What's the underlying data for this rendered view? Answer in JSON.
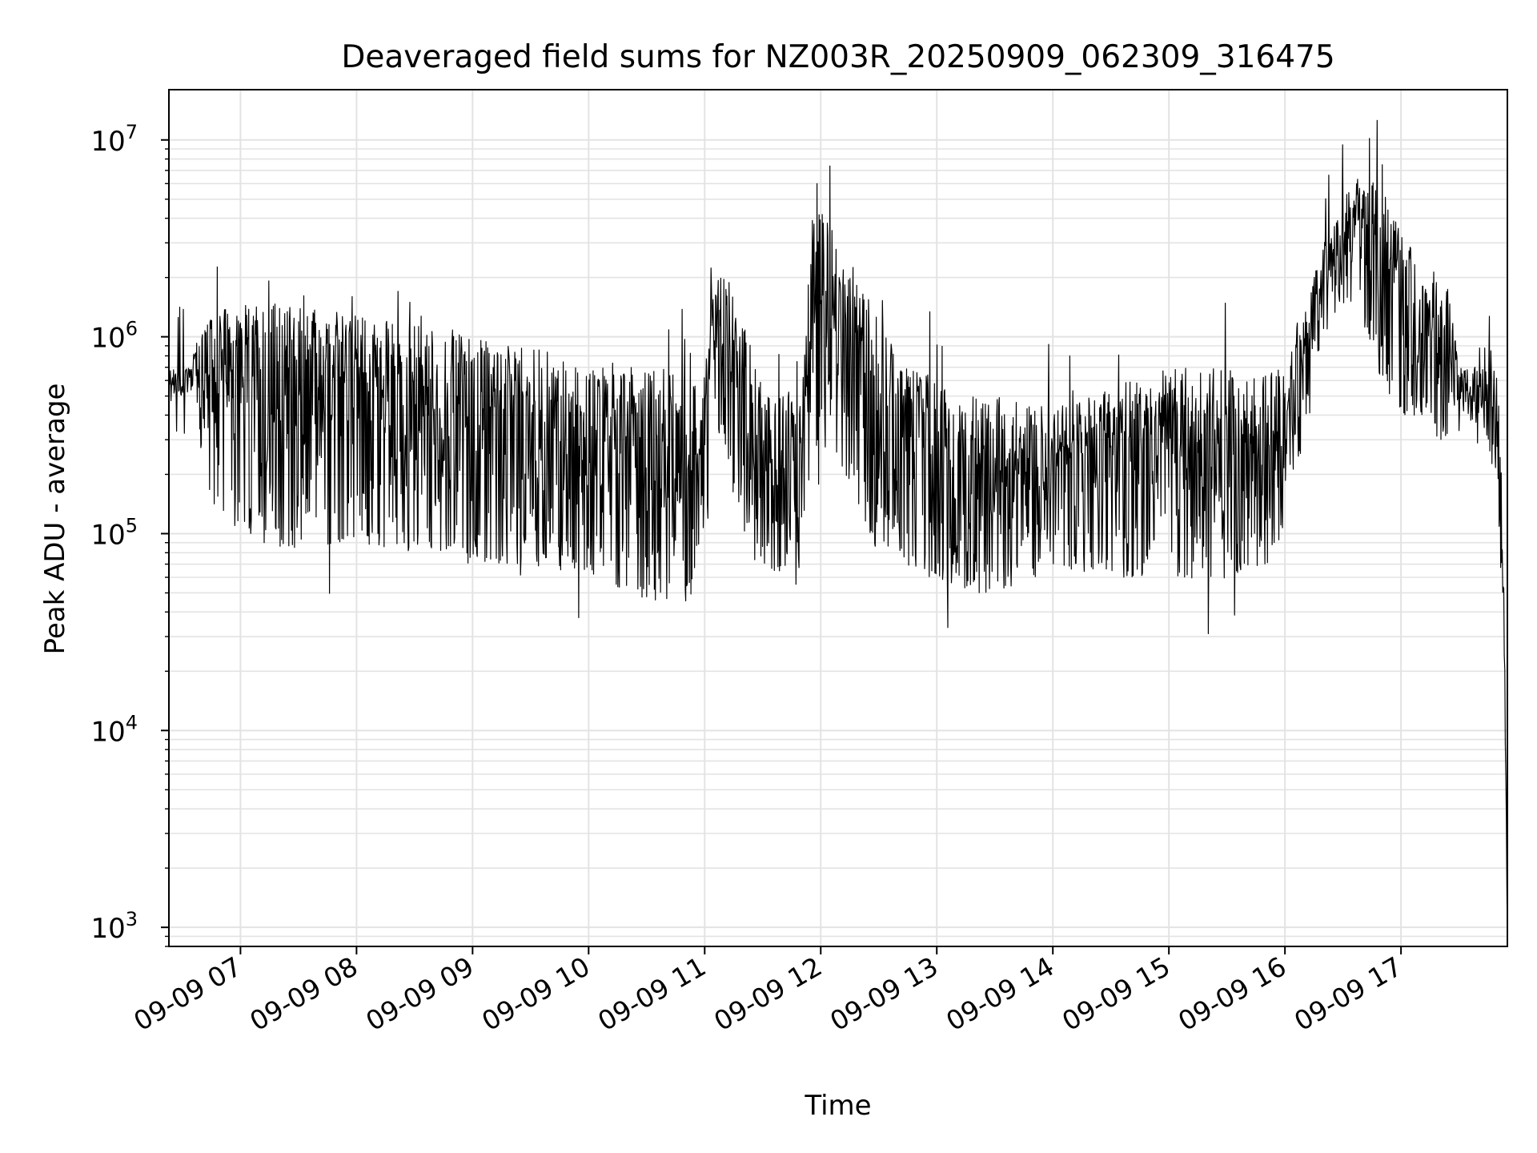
{
  "chart_data": {
    "type": "line",
    "title": "Deaveraged field sums for NZ003R_20250909_062309_316475",
    "xlabel": "Time",
    "ylabel": "Peak ADU - average",
    "yscale": "log",
    "xlim": [
      "2025-09-09 06:23",
      "2025-09-09 17:55"
    ],
    "ylim": [
      800,
      18000000
    ],
    "grid": true,
    "x_ticks": [
      {
        "value": "2025-09-09 07:00",
        "label": "09-09 07"
      },
      {
        "value": "2025-09-09 08:00",
        "label": "09-09 08"
      },
      {
        "value": "2025-09-09 09:00",
        "label": "09-09 09"
      },
      {
        "value": "2025-09-09 10:00",
        "label": "09-09 10"
      },
      {
        "value": "2025-09-09 11:00",
        "label": "09-09 11"
      },
      {
        "value": "2025-09-09 12:00",
        "label": "09-09 12"
      },
      {
        "value": "2025-09-09 13:00",
        "label": "09-09 13"
      },
      {
        "value": "2025-09-09 14:00",
        "label": "09-09 14"
      },
      {
        "value": "2025-09-09 15:00",
        "label": "09-09 15"
      },
      {
        "value": "2025-09-09 16:00",
        "label": "09-09 16"
      },
      {
        "value": "2025-09-09 17:00",
        "label": "09-09 17"
      }
    ],
    "y_ticks": [
      {
        "value": 1000,
        "base": "10",
        "exp": "3"
      },
      {
        "value": 10000,
        "base": "10",
        "exp": "4"
      },
      {
        "value": 100000,
        "base": "10",
        "exp": "5"
      },
      {
        "value": 1000000,
        "base": "10",
        "exp": "6"
      },
      {
        "value": 10000000,
        "base": "10",
        "exp": "7"
      }
    ],
    "series": [
      {
        "color": "#000000",
        "note_envelope": "upper/lower envelope of the dense noisy trace, time in HH:MM",
        "x": [
          "06:23",
          "06:30",
          "06:37",
          "06:40",
          "06:45",
          "06:50",
          "07:00",
          "07:10",
          "07:20",
          "07:30",
          "07:40",
          "07:50",
          "08:00",
          "08:10",
          "08:20",
          "08:30",
          "08:40",
          "08:50",
          "09:00",
          "09:10",
          "09:20",
          "09:30",
          "09:40",
          "09:50",
          "10:00",
          "10:10",
          "10:20",
          "10:30",
          "10:40",
          "10:50",
          "11:00",
          "11:05",
          "11:10",
          "11:20",
          "11:30",
          "11:40",
          "11:50",
          "11:55",
          "12:00",
          "12:10",
          "12:20",
          "12:30",
          "12:40",
          "12:50",
          "13:00",
          "13:10",
          "13:20",
          "13:30",
          "13:40",
          "13:50",
          "14:00",
          "14:10",
          "14:20",
          "14:30",
          "14:40",
          "14:50",
          "15:00",
          "15:10",
          "15:20",
          "15:30",
          "15:40",
          "15:50",
          "16:00",
          "16:05",
          "16:10",
          "16:15",
          "16:20",
          "16:30",
          "16:40",
          "16:50",
          "17:00",
          "17:10",
          "17:20",
          "17:25",
          "17:30",
          "17:40",
          "17:45",
          "17:50",
          "17:53",
          "17:55"
        ],
        "upper": [
          700000,
          650000,
          900000,
          1200000,
          1300000,
          1400000,
          1500000,
          1500000,
          1500000,
          1500000,
          1400000,
          1350000,
          1300000,
          1300000,
          1200000,
          1150000,
          1100000,
          1050000,
          1000000,
          950000,
          900000,
          900000,
          850000,
          800000,
          800000,
          750000,
          700000,
          700000,
          700000,
          650000,
          650000,
          1800000,
          2200000,
          1400000,
          550000,
          550000,
          500000,
          4000000,
          5000000,
          3000000,
          2000000,
          1200000,
          800000,
          700000,
          600000,
          500000,
          500000,
          500000,
          500000,
          450000,
          450000,
          450000,
          500000,
          550000,
          600000,
          650000,
          700000,
          700000,
          700000,
          700000,
          600000,
          650000,
          700000,
          1100000,
          1500000,
          2000000,
          3000000,
          5000000,
          7000000,
          6000000,
          3500000,
          2500000,
          2000000,
          1800000,
          700000,
          800000,
          1000000,
          600000,
          100000,
          1200
        ],
        "lower": [
          450000,
          500000,
          550000,
          200000,
          150000,
          120000,
          100000,
          90000,
          85000,
          85000,
          90000,
          85000,
          90000,
          85000,
          85000,
          80000,
          80000,
          80000,
          75000,
          70000,
          70000,
          70000,
          65000,
          65000,
          65000,
          55000,
          50000,
          45000,
          45000,
          45000,
          70000,
          350000,
          300000,
          80000,
          70000,
          60000,
          50000,
          250000,
          300000,
          200000,
          120000,
          80000,
          70000,
          60000,
          60000,
          55000,
          50000,
          50000,
          55000,
          60000,
          65000,
          65000,
          60000,
          60000,
          60000,
          60000,
          60000,
          60000,
          55000,
          60000,
          65000,
          70000,
          80000,
          200000,
          300000,
          500000,
          1000000,
          1500000,
          1200000,
          600000,
          400000,
          400000,
          300000,
          300000,
          350000,
          350000,
          300000,
          150000,
          40000,
          900
        ]
      }
    ]
  }
}
